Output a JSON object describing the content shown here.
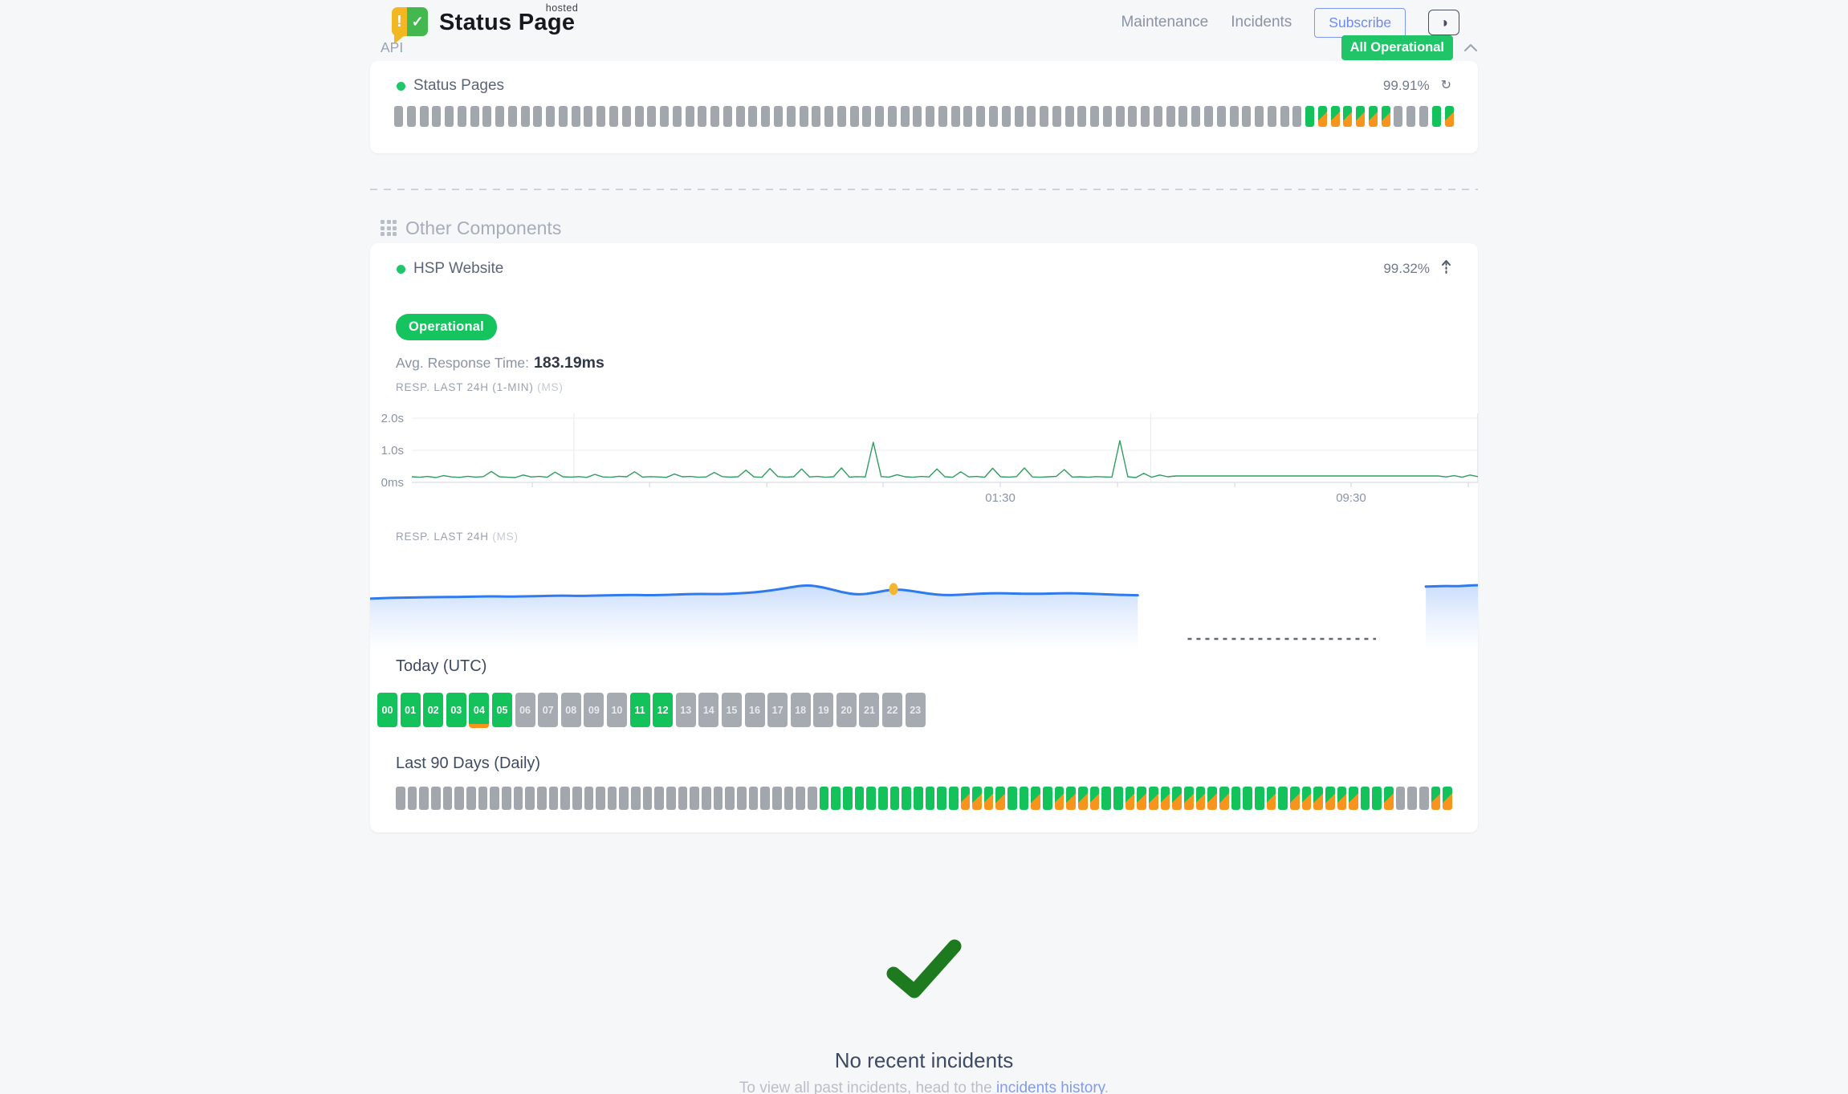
{
  "header": {
    "brand": {
      "name": "Status Page",
      "superscript": "hosted",
      "icon_exclaim": "!",
      "icon_check": "✓"
    },
    "nav": [
      {
        "label": "Maintenance"
      },
      {
        "label": "Incidents"
      }
    ],
    "subscribe_label": "Subscribe",
    "theme_icon": "◑",
    "status_badge": "All Operational"
  },
  "colors": {
    "green": "#14c25c",
    "orange": "#f7941e",
    "gray": "#a2a6ad",
    "blue_line": "#2f7af0",
    "green_line": "#2e9d5f",
    "marker": "#f3b62f",
    "check": "#1e7a1f"
  },
  "api_section": {
    "title": "API",
    "component": {
      "name": "Status Pages",
      "uptime": "99.91%",
      "refresh_icon": "↻",
      "bars": [
        "g",
        "g",
        "g",
        "g",
        "g",
        "g",
        "g",
        "g",
        "g",
        "g",
        "g",
        "g",
        "g",
        "g",
        "g",
        "g",
        "g",
        "g",
        "g",
        "g",
        "g",
        "g",
        "g",
        "g",
        "g",
        "g",
        "g",
        "g",
        "g",
        "g",
        "g",
        "g",
        "g",
        "g",
        "g",
        "g",
        "g",
        "g",
        "g",
        "g",
        "g",
        "g",
        "g",
        "g",
        "g",
        "g",
        "g",
        "g",
        "g",
        "g",
        "g",
        "g",
        "g",
        "g",
        "g",
        "g",
        "g",
        "g",
        "g",
        "g",
        "g",
        "g",
        "g",
        "g",
        "g",
        "g",
        "g",
        "g",
        "g",
        "g",
        "g",
        "g",
        "G",
        "O",
        "O",
        "O",
        "O",
        "O",
        "O",
        "g",
        "g",
        "g",
        "G",
        "O"
      ]
    }
  },
  "other": {
    "title": "Other Components",
    "component": {
      "name": "HSP Website",
      "uptime": "99.32%",
      "status": "Operational",
      "avg_response_label": "Avg. Response Time:",
      "avg_response_value": "183.19ms",
      "chart1": {
        "type": "line",
        "label": "RESP. LAST 24H (1-MIN)",
        "unit": "(MS)",
        "y_ticks": [
          {
            "label": "2.0s",
            "ms": 2000
          },
          {
            "label": "1.0s",
            "ms": 1000
          },
          {
            "label": "0ms",
            "ms": 0
          }
        ],
        "x_ticks": [
          {
            "label": "01:30",
            "pos": 0.552
          },
          {
            "label": "09:30",
            "pos": 0.881
          }
        ],
        "minor_ticks": [
          0.113,
          0.223,
          0.333,
          0.442,
          0.552,
          0.662,
          0.772,
          0.881,
          0.991
        ],
        "vlines": [
          0.152,
          0.693,
          1.0
        ],
        "values_ms": [
          175,
          160,
          185,
          150,
          210,
          170,
          155,
          190,
          165,
          180,
          340,
          175,
          160,
          150,
          230,
          170,
          185,
          160,
          320,
          175,
          165,
          180,
          155,
          250,
          170,
          160,
          190,
          175,
          330,
          165,
          180,
          170,
          155,
          260,
          175,
          185,
          160,
          170,
          310,
          180,
          165,
          175,
          380,
          170,
          160,
          430,
          180,
          165,
          175,
          420,
          170,
          185,
          160,
          175,
          450,
          165,
          180,
          170,
          1250,
          180,
          165,
          240,
          175,
          160,
          185,
          170,
          420,
          175,
          160,
          330,
          170,
          185,
          160,
          440,
          175,
          165,
          180,
          450,
          170,
          160,
          175,
          185,
          400,
          165,
          175,
          160,
          180,
          170,
          165,
          1300,
          175,
          150,
          280,
          160,
          230,
          175,
          200,
          200,
          200,
          200,
          200,
          200,
          200,
          200,
          200,
          200,
          200,
          200,
          200,
          200,
          200,
          200,
          200,
          200,
          200,
          200,
          200,
          200,
          200,
          200,
          200,
          200,
          200,
          200,
          200,
          200,
          200,
          200,
          200,
          200,
          170,
          210,
          160,
          230,
          180
        ]
      },
      "chart2": {
        "type": "area",
        "label": "RESP. LAST 24H",
        "unit": "(MS)",
        "segment1_ms": [
          170,
          172,
          173,
          174,
          175,
          175,
          176,
          177,
          176,
          177,
          178,
          179,
          178,
          179,
          180,
          181,
          180,
          181,
          183,
          184,
          183,
          185,
          188,
          194,
          202,
          210,
          203,
          189,
          181,
          188,
          198,
          193,
          184,
          180,
          182,
          185,
          186,
          185,
          184,
          185,
          186,
          185,
          183,
          181,
          180
        ],
        "segment1_end": 0.693,
        "marker_index": 30,
        "gap_dash_start": 0.738,
        "gap_dash_end": 0.908,
        "segment2_ms": [
          205,
          206,
          207,
          206,
          208,
          209
        ],
        "segment2_start": 0.953
      },
      "today": {
        "title": "Today (UTC)",
        "hours": [
          {
            "label": "00",
            "state": "up"
          },
          {
            "label": "01",
            "state": "up"
          },
          {
            "label": "02",
            "state": "up"
          },
          {
            "label": "03",
            "state": "up"
          },
          {
            "label": "04",
            "state": "up",
            "partial": true
          },
          {
            "label": "05",
            "state": "up"
          },
          {
            "label": "06",
            "state": "na"
          },
          {
            "label": "07",
            "state": "na"
          },
          {
            "label": "08",
            "state": "na"
          },
          {
            "label": "09",
            "state": "na"
          },
          {
            "label": "10",
            "state": "na"
          },
          {
            "label": "11",
            "state": "up"
          },
          {
            "label": "12",
            "state": "up"
          },
          {
            "label": "13",
            "state": "na"
          },
          {
            "label": "14",
            "state": "na"
          },
          {
            "label": "15",
            "state": "na"
          },
          {
            "label": "16",
            "state": "na"
          },
          {
            "label": "17",
            "state": "na"
          },
          {
            "label": "18",
            "state": "na"
          },
          {
            "label": "19",
            "state": "na"
          },
          {
            "label": "20",
            "state": "na"
          },
          {
            "label": "21",
            "state": "na"
          },
          {
            "label": "22",
            "state": "na"
          },
          {
            "label": "23",
            "state": "na"
          }
        ]
      },
      "last90": {
        "title": "Last 90 Days (Daily)",
        "blocks": [
          "g",
          "g",
          "g",
          "g",
          "g",
          "g",
          "g",
          "g",
          "g",
          "g",
          "g",
          "g",
          "g",
          "g",
          "g",
          "g",
          "g",
          "g",
          "g",
          "g",
          "g",
          "g",
          "g",
          "g",
          "g",
          "g",
          "g",
          "g",
          "g",
          "g",
          "g",
          "g",
          "g",
          "g",
          "g",
          "g",
          "G",
          "G",
          "G",
          "G",
          "G",
          "G",
          "G",
          "G",
          "G",
          "G",
          "G",
          "G",
          "O",
          "O",
          "O",
          "O",
          "G",
          "G",
          "O",
          "G",
          "O",
          "O",
          "O",
          "O",
          "G",
          "G",
          "O",
          "O",
          "O",
          "O",
          "O",
          "O",
          "O",
          "O",
          "O",
          "G",
          "G",
          "G",
          "O",
          "G",
          "O",
          "O",
          "O",
          "O",
          "O",
          "O",
          "G",
          "G",
          "O",
          "g",
          "g",
          "g",
          "O",
          "O"
        ]
      }
    }
  },
  "footer": {
    "no_incidents": "No recent incidents",
    "history_prefix": "To view all past incidents, head to the ",
    "history_link": "incidents history",
    "history_suffix": "."
  }
}
